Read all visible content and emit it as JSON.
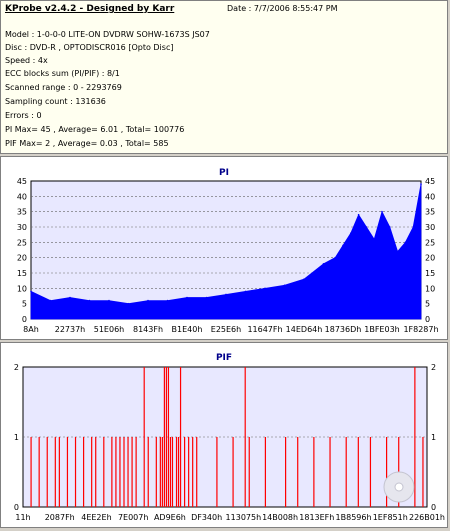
{
  "header": {
    "title": "KProbe v2.4.2 - Designed by Karr",
    "date": "Date : 7/7/2006 8:55:47 PM",
    "lines": [
      "Model : 1-0-0-0 LITE-ON DVDRW SOHW-1673S JS07",
      "Disc : DVD-R , OPTODISCR016 [Opto Disc]",
      "Speed : 4x",
      "ECC blocks sum (PI/PIF) : 8/1",
      "Scanned range : 0 - 2293769",
      "Sampling count : 131636",
      "Errors : 0",
      "PI Max= 45 , Average= 6.01 , Total= 100776",
      "PIF Max= 2 , Average= 0.03 , Total= 585"
    ]
  },
  "colors": {
    "pi_fill": "#0000ff",
    "pif_line": "#ff0000",
    "plot_bg": "#e8e8ff",
    "title": "#00008b"
  },
  "chart_data": [
    {
      "type": "area",
      "title": "PI",
      "ylim": [
        0,
        45
      ],
      "yticks": [
        "0",
        "5",
        "10",
        "15",
        "20",
        "25",
        "30",
        "35",
        "40",
        "45"
      ],
      "xtick_labels": [
        "8Ah",
        "22737h",
        "51E06h",
        "8143Fh",
        "B1E40h",
        "E25E6h",
        "11647Fh",
        "14ED64h",
        "18736Dh",
        "1BFE03h",
        "1F8287h"
      ],
      "x": [
        0,
        0.05,
        0.1,
        0.15,
        0.2,
        0.25,
        0.3,
        0.35,
        0.4,
        0.45,
        0.5,
        0.55,
        0.6,
        0.65,
        0.7,
        0.75,
        0.78,
        0.8,
        0.82,
        0.84,
        0.86,
        0.88,
        0.9,
        0.92,
        0.94,
        0.96,
        0.98,
        1.0
      ],
      "values": [
        9,
        6,
        7,
        6,
        6,
        5,
        6,
        6,
        7,
        7,
        8,
        9,
        10,
        11,
        13,
        18,
        20,
        24,
        28,
        34,
        30,
        26,
        35,
        30,
        22,
        25,
        30,
        44
      ]
    },
    {
      "type": "bar",
      "title": "PIF",
      "ylim": [
        0,
        2
      ],
      "yticks": [
        "0",
        "1",
        "2"
      ],
      "xtick_labels": [
        "11h",
        "2087Fh",
        "4EE2Eh",
        "7E007h",
        "AD9E6h",
        "DF340h",
        "113075h",
        "14B008h",
        "1813EFh",
        "1B8596h",
        "1EF851h",
        "226B01h"
      ],
      "x": [
        0.02,
        0.04,
        0.06,
        0.08,
        0.09,
        0.11,
        0.13,
        0.15,
        0.17,
        0.18,
        0.2,
        0.22,
        0.23,
        0.24,
        0.25,
        0.26,
        0.27,
        0.28,
        0.3,
        0.31,
        0.33,
        0.34,
        0.345,
        0.35,
        0.355,
        0.36,
        0.365,
        0.37,
        0.38,
        0.385,
        0.39,
        0.4,
        0.41,
        0.42,
        0.43,
        0.48,
        0.52,
        0.55,
        0.56,
        0.6,
        0.65,
        0.68,
        0.72,
        0.76,
        0.8,
        0.83,
        0.86,
        0.9,
        0.93,
        0.97,
        0.99
      ],
      "values": [
        1,
        1,
        1,
        1,
        1,
        1,
        1,
        1,
        1,
        1,
        1,
        1,
        1,
        1,
        1,
        1,
        1,
        1,
        2,
        1,
        1,
        1,
        1,
        2,
        2,
        2,
        1,
        1,
        1,
        1,
        2,
        1,
        1,
        1,
        1,
        1,
        1,
        2,
        1,
        1,
        1,
        1,
        1,
        1,
        1,
        1,
        1,
        1,
        1,
        2,
        1
      ]
    }
  ]
}
